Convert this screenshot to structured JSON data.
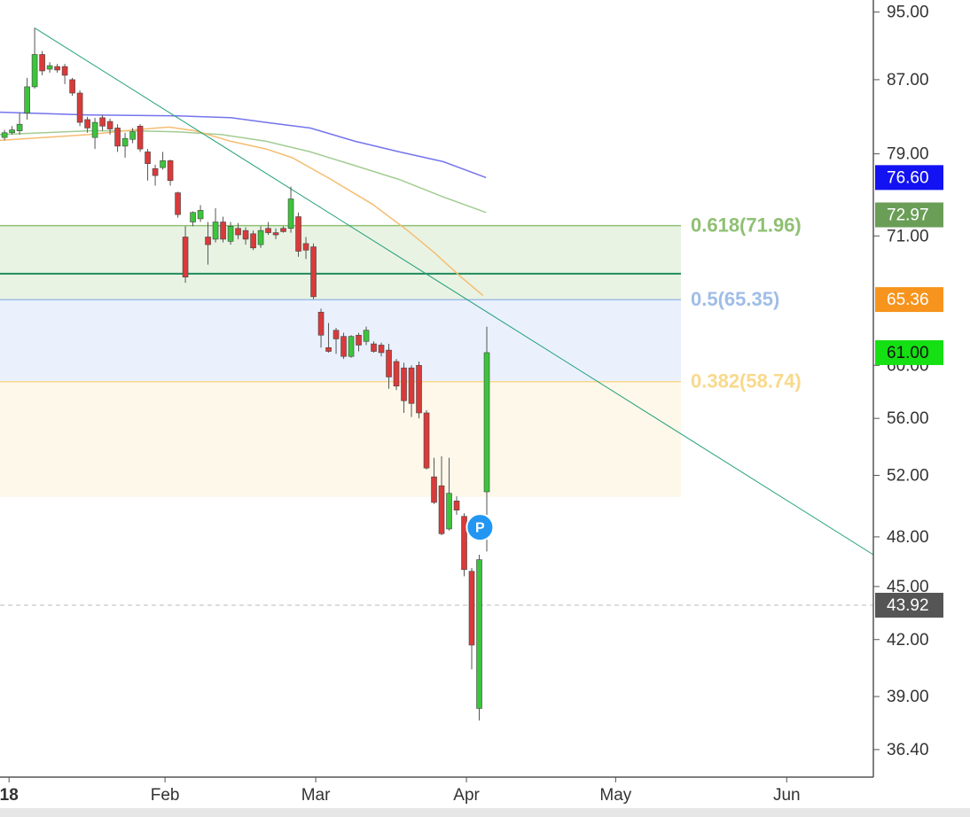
{
  "chart_data": {
    "type": "candlestick",
    "log_y": true,
    "xlim": [
      -0.6,
      115.3
    ],
    "ylim": [
      35.2,
      96.5
    ],
    "xticks": [
      {
        "value": 0.6,
        "label": "18"
      },
      {
        "value": 21.3,
        "label": "Feb"
      },
      {
        "value": 41.3,
        "label": "Mar"
      },
      {
        "value": 61.3,
        "label": "Apr"
      },
      {
        "value": 81.1,
        "label": "May"
      },
      {
        "value": 103.8,
        "label": "Jun"
      }
    ],
    "yticks": [
      {
        "value": 95,
        "label": "95.00"
      },
      {
        "value": 87,
        "label": "87.00"
      },
      {
        "value": 79,
        "label": "79.00"
      },
      {
        "value": 71,
        "label": "71.00"
      },
      {
        "value": 60,
        "label": "60.00"
      },
      {
        "value": 56,
        "label": "56.00"
      },
      {
        "value": 52,
        "label": "52.00"
      },
      {
        "value": 48,
        "label": "48.00"
      },
      {
        "value": 45,
        "label": "45.00"
      },
      {
        "value": 42,
        "label": "42.00"
      },
      {
        "value": 39,
        "label": "39.00"
      },
      {
        "value": 36.4,
        "label": "36.40"
      }
    ],
    "up_color": "#3cc43c",
    "down_color": "#d93a3a",
    "wick_color": "#555555",
    "x": [
      0,
      1,
      2,
      3,
      4,
      5,
      6,
      7,
      8,
      9,
      10,
      11,
      12,
      13,
      14,
      15,
      16,
      17,
      18,
      19,
      20,
      21,
      22,
      23,
      24,
      25,
      26,
      27,
      28,
      29,
      30,
      31,
      32,
      33,
      34,
      35,
      36,
      37,
      38,
      39,
      40,
      41,
      42,
      43,
      44,
      45,
      46,
      47,
      48,
      49,
      50,
      51,
      52,
      53,
      54,
      55,
      56,
      57,
      58,
      59,
      60,
      61,
      62,
      63,
      64
    ],
    "open": [
      80.7,
      81.2,
      81.4,
      83.3,
      86.2,
      89.9,
      88.2,
      88.5,
      88.5,
      87.0,
      85.5,
      82.6,
      80.7,
      82.8,
      82.4,
      81.7,
      79.8,
      80.5,
      81.9,
      79.2,
      77.5,
      77.6,
      78.3,
      75.1,
      70.9,
      72.3,
      72.6,
      70.9,
      70.7,
      72.3,
      70.5,
      71.7,
      71.5,
      71.2,
      70.2,
      71.7,
      71.3,
      71.7,
      71.7,
      72.8,
      70.3,
      70.0,
      64.3,
      61.4,
      62.8,
      62.3,
      60.7,
      62.4,
      61.9,
      61.7,
      61.6,
      61.2,
      60.3,
      59.8,
      59.8,
      60.0,
      56.4,
      51.9,
      51.3,
      48.5,
      50.3,
      49.3,
      45.9,
      38.4,
      50.9
    ],
    "high": [
      81.5,
      81.9,
      83.3,
      87.2,
      93.1,
      90.3,
      89.0,
      88.8,
      88.8,
      87.2,
      85.8,
      82.9,
      82.8,
      83.1,
      82.7,
      82.1,
      81.2,
      81.7,
      82.1,
      79.5,
      77.9,
      79.2,
      78.4,
      75.2,
      71.9,
      73.3,
      73.9,
      72.3,
      73.6,
      72.8,
      72.3,
      72.2,
      71.8,
      71.5,
      71.9,
      72.3,
      71.7,
      71.9,
      75.7,
      73.2,
      70.9,
      70.3,
      64.6,
      63.4,
      63.0,
      62.6,
      62.4,
      62.6,
      63.1,
      61.9,
      61.8,
      61.7,
      60.5,
      60.2,
      60.0,
      60.3,
      56.6,
      53.2,
      53.3,
      53.2,
      50.6,
      49.5,
      46.1,
      46.9,
      63.1
    ],
    "low": [
      80.4,
      81.0,
      81.0,
      82.6,
      86.0,
      87.5,
      87.8,
      87.8,
      86.5,
      85.2,
      81.9,
      81.2,
      79.5,
      81.4,
      81.0,
      79.2,
      78.6,
      80.1,
      79.2,
      76.3,
      75.8,
      77.4,
      75.8,
      72.7,
      66.8,
      71.9,
      72.3,
      68.4,
      70.4,
      70.4,
      70.2,
      70.7,
      70.2,
      69.7,
      69.9,
      71.1,
      70.7,
      71.3,
      71.3,
      69.1,
      68.9,
      65.4,
      61.4,
      61.0,
      60.9,
      60.5,
      60.6,
      61.1,
      61.6,
      61.0,
      60.7,
      58.2,
      58.1,
      56.4,
      56.1,
      56.0,
      52.4,
      50.1,
      48.1,
      48.4,
      49.4,
      45.6,
      40.4,
      37.8,
      47.1
    ],
    "close": [
      81.2,
      81.5,
      82.1,
      86.2,
      89.9,
      88.0,
      88.6,
      88.1,
      87.5,
      85.5,
      82.3,
      81.7,
      82.3,
      81.9,
      81.6,
      79.8,
      80.6,
      81.3,
      79.5,
      78.0,
      76.8,
      78.3,
      76.3,
      73.0,
      67.3,
      73.2,
      73.4,
      70.2,
      72.3,
      70.7,
      71.9,
      71.1,
      70.7,
      69.9,
      71.5,
      71.3,
      71.1,
      71.4,
      74.5,
      69.6,
      69.7,
      65.6,
      62.4,
      61.1,
      62.1,
      60.7,
      62.3,
      61.6,
      62.8,
      61.1,
      61.0,
      59.1,
      58.4,
      57.3,
      57.1,
      56.4,
      52.5,
      50.2,
      48.2,
      50.8,
      49.7,
      46.0,
      41.7,
      46.6,
      61.0
    ],
    "overlays": [
      {
        "color": "#7474ee",
        "x": [
          -0.6,
          11.2,
          22.9,
          30,
          34.7,
          40.6,
          46.5,
          52.4,
          58.2,
          63.9
        ],
        "values": [
          83.4,
          83.1,
          83.0,
          82.8,
          82.3,
          81.7,
          80.3,
          79.2,
          78.2,
          76.6
        ]
      },
      {
        "color": "#a2cc94",
        "x": [
          -0.6,
          11.2,
          17.1,
          22.9,
          28.8,
          34.7,
          40.6,
          46.5,
          52.4,
          58.2,
          63.9
        ],
        "values": [
          81.0,
          81.4,
          81.4,
          81.3,
          81.0,
          80.3,
          79.2,
          77.8,
          76.4,
          74.7,
          73.2
        ]
      },
      {
        "color": "#f5bd72",
        "x": [
          -0.6,
          11.2,
          17.1,
          21.8,
          25.3,
          30,
          34.7,
          38.2,
          42.9,
          48.8,
          53.5,
          57,
          60.6,
          63.5
        ],
        "values": [
          80.4,
          81.0,
          81.5,
          81.8,
          81.4,
          80.3,
          79.5,
          78.6,
          76.6,
          74.0,
          71.5,
          69.5,
          67.3,
          65.7
        ]
      }
    ],
    "trendline": {
      "color": "#22a07a",
      "x": [
        4.1,
        115.3
      ],
      "values": [
        93.0,
        46.9
      ]
    },
    "hline": {
      "color": "#1f8a5c",
      "value": 67.6
    },
    "fib_levels": [
      {
        "label": "0.618(71.96)",
        "value": 71.96,
        "color": "#8fc073",
        "band": "#e9f3e4"
      },
      {
        "label": "0.5(65.35)",
        "value": 65.35,
        "color": "#9fbde8",
        "band": "#eaf1fc"
      },
      {
        "label": "0.382(58.74)",
        "value": 58.74,
        "color": "#f8d98c",
        "band": "#fef8ea"
      }
    ],
    "fib_lower": 50.57,
    "marker": {
      "x": 63.1,
      "value": 48.6,
      "label": "P",
      "color": "#2196f3"
    },
    "price_tags": [
      {
        "value": 76.6,
        "label": "76.60",
        "color": "#1212f2",
        "text_color": "#ffffff"
      },
      {
        "value": 72.97,
        "label": "72.97",
        "color": "#6a9e57",
        "text_color": "#ffffff"
      },
      {
        "value": 65.36,
        "label": "65.36",
        "color": "#f7941d",
        "text_color": "#ffffff"
      },
      {
        "value": 61.0,
        "label": "61.00",
        "color": "#14e014",
        "text_color": "#111111"
      },
      {
        "value": 43.92,
        "label": "43.92",
        "color": "#555555",
        "text_color": "#ffffff",
        "dashed": true
      }
    ]
  }
}
